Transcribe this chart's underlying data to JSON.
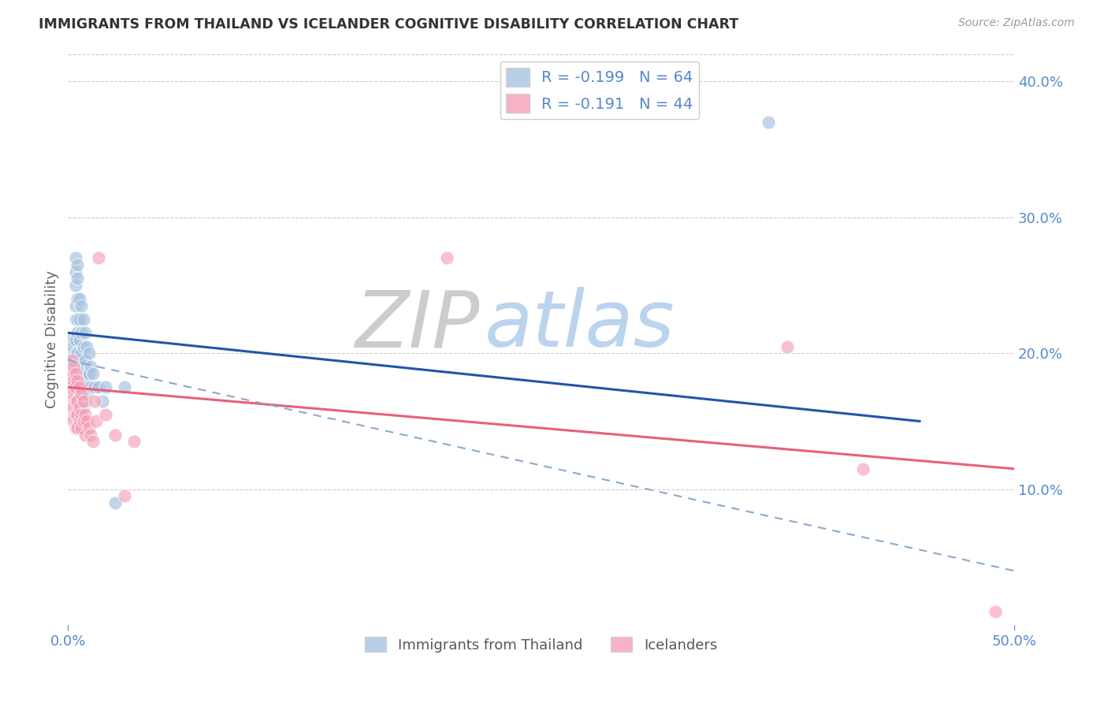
{
  "title": "IMMIGRANTS FROM THAILAND VS ICELANDER COGNITIVE DISABILITY CORRELATION CHART",
  "source": "Source: ZipAtlas.com",
  "ylabel": "Cognitive Disability",
  "x_min": 0.0,
  "x_max": 0.5,
  "y_min": 0.0,
  "y_max": 0.42,
  "right_yticks": [
    0.1,
    0.2,
    0.3,
    0.4
  ],
  "right_ytick_labels": [
    "10.0%",
    "20.0%",
    "30.0%",
    "40.0%"
  ],
  "xticks": [
    0.0,
    0.5
  ],
  "xtick_labels": [
    "0.0%",
    "50.0%"
  ],
  "legend_r1": "R = -0.199   N = 64",
  "legend_r2": "R = -0.191   N = 44",
  "blue_color": "#A8C4E0",
  "pink_color": "#F4A0B8",
  "blue_line_color": "#2255AA",
  "pink_line_color": "#E8607A",
  "dashed_line_color": "#88AACC",
  "watermark_zip": "ZIP",
  "watermark_atlas": "atlas",
  "title_color": "#333333",
  "axis_color": "#5588CC",
  "thailand_points": [
    [
      0.002,
      0.21
    ],
    [
      0.002,
      0.2
    ],
    [
      0.002,
      0.195
    ],
    [
      0.002,
      0.19
    ],
    [
      0.002,
      0.185
    ],
    [
      0.003,
      0.205
    ],
    [
      0.003,
      0.195
    ],
    [
      0.003,
      0.185
    ],
    [
      0.003,
      0.175
    ],
    [
      0.004,
      0.27
    ],
    [
      0.004,
      0.26
    ],
    [
      0.004,
      0.25
    ],
    [
      0.004,
      0.235
    ],
    [
      0.004,
      0.225
    ],
    [
      0.004,
      0.21
    ],
    [
      0.004,
      0.2
    ],
    [
      0.004,
      0.19
    ],
    [
      0.004,
      0.18
    ],
    [
      0.005,
      0.265
    ],
    [
      0.005,
      0.255
    ],
    [
      0.005,
      0.24
    ],
    [
      0.005,
      0.225
    ],
    [
      0.005,
      0.215
    ],
    [
      0.005,
      0.2
    ],
    [
      0.005,
      0.19
    ],
    [
      0.005,
      0.175
    ],
    [
      0.005,
      0.165
    ],
    [
      0.006,
      0.24
    ],
    [
      0.006,
      0.225
    ],
    [
      0.006,
      0.21
    ],
    [
      0.006,
      0.195
    ],
    [
      0.006,
      0.18
    ],
    [
      0.006,
      0.165
    ],
    [
      0.007,
      0.235
    ],
    [
      0.007,
      0.215
    ],
    [
      0.007,
      0.2
    ],
    [
      0.007,
      0.185
    ],
    [
      0.007,
      0.175
    ],
    [
      0.007,
      0.16
    ],
    [
      0.007,
      0.15
    ],
    [
      0.008,
      0.225
    ],
    [
      0.008,
      0.205
    ],
    [
      0.008,
      0.19
    ],
    [
      0.008,
      0.175
    ],
    [
      0.008,
      0.16
    ],
    [
      0.009,
      0.215
    ],
    [
      0.009,
      0.195
    ],
    [
      0.009,
      0.18
    ],
    [
      0.009,
      0.165
    ],
    [
      0.01,
      0.205
    ],
    [
      0.01,
      0.185
    ],
    [
      0.01,
      0.17
    ],
    [
      0.011,
      0.2
    ],
    [
      0.011,
      0.185
    ],
    [
      0.012,
      0.19
    ],
    [
      0.012,
      0.175
    ],
    [
      0.013,
      0.185
    ],
    [
      0.014,
      0.175
    ],
    [
      0.016,
      0.175
    ],
    [
      0.018,
      0.165
    ],
    [
      0.02,
      0.175
    ],
    [
      0.025,
      0.09
    ],
    [
      0.03,
      0.175
    ],
    [
      0.37,
      0.37
    ]
  ],
  "iceland_points": [
    [
      0.002,
      0.195
    ],
    [
      0.002,
      0.185
    ],
    [
      0.002,
      0.175
    ],
    [
      0.002,
      0.165
    ],
    [
      0.002,
      0.155
    ],
    [
      0.003,
      0.19
    ],
    [
      0.003,
      0.18
    ],
    [
      0.003,
      0.17
    ],
    [
      0.003,
      0.16
    ],
    [
      0.003,
      0.15
    ],
    [
      0.004,
      0.185
    ],
    [
      0.004,
      0.175
    ],
    [
      0.004,
      0.165
    ],
    [
      0.004,
      0.155
    ],
    [
      0.004,
      0.145
    ],
    [
      0.005,
      0.18
    ],
    [
      0.005,
      0.165
    ],
    [
      0.005,
      0.155
    ],
    [
      0.005,
      0.145
    ],
    [
      0.006,
      0.175
    ],
    [
      0.006,
      0.16
    ],
    [
      0.006,
      0.15
    ],
    [
      0.007,
      0.17
    ],
    [
      0.007,
      0.155
    ],
    [
      0.007,
      0.145
    ],
    [
      0.008,
      0.165
    ],
    [
      0.008,
      0.15
    ],
    [
      0.009,
      0.155
    ],
    [
      0.009,
      0.14
    ],
    [
      0.01,
      0.15
    ],
    [
      0.011,
      0.145
    ],
    [
      0.012,
      0.14
    ],
    [
      0.013,
      0.135
    ],
    [
      0.014,
      0.165
    ],
    [
      0.015,
      0.15
    ],
    [
      0.016,
      0.27
    ],
    [
      0.02,
      0.155
    ],
    [
      0.025,
      0.14
    ],
    [
      0.03,
      0.095
    ],
    [
      0.035,
      0.135
    ],
    [
      0.2,
      0.27
    ],
    [
      0.38,
      0.205
    ],
    [
      0.42,
      0.115
    ],
    [
      0.49,
      0.01
    ]
  ],
  "blue_trendline_x": [
    0.0,
    0.45
  ],
  "blue_trendline_y": [
    0.215,
    0.15
  ],
  "pink_trendline_x": [
    0.0,
    0.5
  ],
  "pink_trendline_y": [
    0.175,
    0.115
  ],
  "dashed_trendline_x": [
    0.0,
    0.5
  ],
  "dashed_trendline_y": [
    0.195,
    0.04
  ]
}
